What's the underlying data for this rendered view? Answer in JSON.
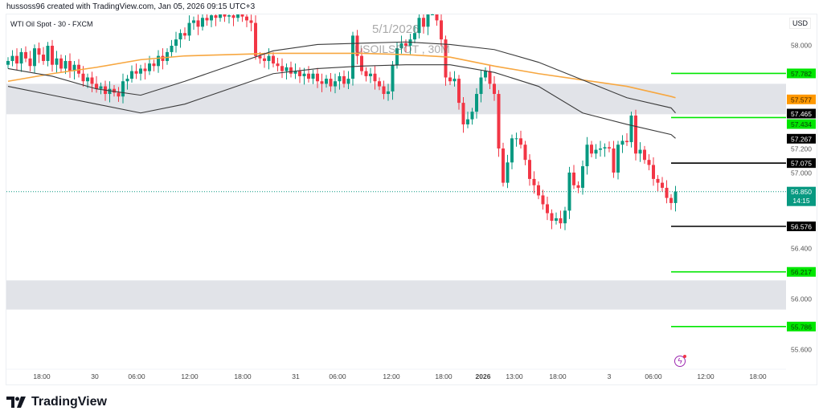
{
  "header": {
    "attribution": "hussoss96 created with TradingView.com, Jan 05, 2026 09:15 UTC+3"
  },
  "symbol_label": "WTI Oil Spot - 30 - FXCM",
  "watermark": {
    "date": "5/1/2026",
    "ticker": "USOILSPOT , 30M"
  },
  "currency": "USD",
  "footer": {
    "logo_text": "TradingView"
  },
  "colors": {
    "up": "#089981",
    "down": "#f23645",
    "ema_orange": "#f7a740",
    "band": "#3a3a3a",
    "zone": "#e1e3e8",
    "level_green": "#00e600",
    "level_black": "#000000",
    "last_price": "#089981"
  },
  "chart_data": {
    "type": "candlestick",
    "title": "WTI Oil Spot - 30 - FXCM",
    "interval": "30",
    "ylim": [
      55.48,
      58.25
    ],
    "grid": false,
    "y_ticks": [
      "58.000",
      "57.200",
      "57.000",
      "56.400",
      "56.000",
      "55.600"
    ],
    "x_ticks": [
      {
        "label": "18:00",
        "bold": false
      },
      {
        "label": "30",
        "bold": false
      },
      {
        "label": "06:00",
        "bold": false
      },
      {
        "label": "12:00",
        "bold": false
      },
      {
        "label": "18:00",
        "bold": false
      },
      {
        "label": "31",
        "bold": false
      },
      {
        "label": "06:00",
        "bold": false
      },
      {
        "label": "12:00",
        "bold": false
      },
      {
        "label": "18:00",
        "bold": false
      },
      {
        "label": "2026",
        "bold": true
      },
      {
        "label": "13:00",
        "bold": false
      },
      {
        "label": "18:00",
        "bold": false
      },
      {
        "label": "3",
        "bold": false
      },
      {
        "label": "06:00",
        "bold": false
      },
      {
        "label": "12:00",
        "bold": false
      },
      {
        "label": "18:00",
        "bold": false
      }
    ],
    "closes": [
      57.88,
      57.92,
      57.86,
      57.95,
      57.9,
      57.84,
      57.98,
      57.93,
      57.88,
      58.0,
      57.85,
      57.9,
      57.82,
      57.88,
      57.8,
      57.85,
      57.78,
      57.72,
      57.75,
      57.7,
      57.66,
      57.68,
      57.62,
      57.66,
      57.63,
      57.6,
      57.72,
      57.74,
      57.8,
      57.78,
      57.82,
      57.8,
      57.86,
      57.84,
      57.92,
      57.88,
      57.95,
      58.0,
      58.05,
      58.1,
      58.08,
      58.18,
      58.2,
      58.15,
      58.22,
      58.2,
      58.24,
      58.22,
      58.25,
      58.23,
      58.24,
      58.22,
      58.25,
      58.23,
      58.2,
      58.18,
      57.92,
      57.9,
      57.88,
      57.92,
      57.86,
      57.84,
      57.8,
      57.83,
      57.78,
      57.8,
      57.76,
      57.78,
      57.74,
      57.78,
      57.72,
      57.7,
      57.74,
      57.68,
      57.72,
      57.76,
      57.7,
      57.74,
      58.08,
      57.92,
      57.8,
      57.76,
      57.78,
      57.72,
      57.68,
      57.62,
      57.64,
      57.85,
      57.98,
      58.02,
      58.0,
      58.05,
      58.1,
      58.22,
      58.15,
      58.28,
      58.3,
      58.2,
      58.05,
      57.75,
      57.72,
      57.74,
      57.55,
      57.38,
      57.42,
      57.48,
      57.62,
      57.75,
      57.8,
      57.7,
      57.62,
      57.19,
      56.92,
      57.08,
      57.27,
      57.27,
      57.22,
      57.1,
      56.95,
      56.9,
      56.82,
      56.75,
      56.68,
      56.62,
      56.64,
      56.6,
      56.7,
      57.0,
      56.9,
      56.88,
      57.05,
      57.22,
      57.15,
      57.18,
      57.19,
      57.2,
      57.19,
      57.0,
      57.22,
      57.25,
      57.24,
      57.45,
      57.15,
      57.18,
      57.1,
      57.06,
      56.95,
      56.92,
      56.88,
      56.8,
      56.76,
      56.85
    ],
    "series": [
      {
        "type": "line",
        "color": "#f7a740",
        "values": [
          57.72,
          57.78,
          57.83,
          57.89,
          57.92,
          57.93,
          57.94,
          57.94,
          57.94,
          57.93,
          57.91,
          57.84,
          57.78,
          57.73,
          57.68,
          57.6,
          57.59
        ]
      },
      {
        "type": "line",
        "color": "#3a3a3a",
        "values": [
          57.82,
          57.76,
          57.66,
          57.61,
          57.72,
          57.84,
          57.96,
          58.01,
          58.02,
          58.03,
          58.01,
          57.97,
          57.87,
          57.73,
          57.59,
          57.51,
          57.47
        ]
      },
      {
        "type": "line",
        "color": "#3a3a3a",
        "values": [
          57.68,
          57.61,
          57.54,
          57.47,
          57.54,
          57.66,
          57.78,
          57.82,
          57.84,
          57.85,
          57.85,
          57.79,
          57.68,
          57.47,
          57.38,
          57.3,
          57.27
        ]
      }
    ],
    "zones": [
      {
        "from": 57.46,
        "to": 57.7
      },
      {
        "from": 55.92,
        "to": 56.15
      }
    ],
    "levels": [
      {
        "price": "57.782",
        "color": "green"
      },
      {
        "price": "57.434",
        "color": "green"
      },
      {
        "price": "57.075",
        "color": "black"
      },
      {
        "price": "56.576",
        "color": "black"
      },
      {
        "price": "56.217",
        "color": "green"
      },
      {
        "price": "55.786",
        "color": "green"
      }
    ],
    "axis_labels": [
      {
        "price": "57.577",
        "style": "orange"
      },
      {
        "price": "57.465",
        "style": "black"
      },
      {
        "price": "57.267",
        "style": "black"
      }
    ],
    "last_price": {
      "price": "56.850",
      "countdown": "14:15"
    }
  }
}
